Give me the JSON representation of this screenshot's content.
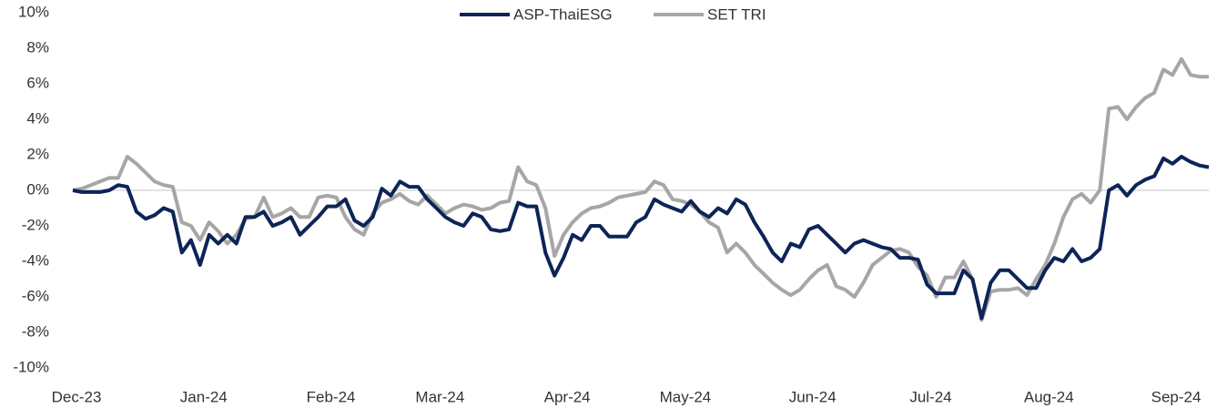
{
  "chart_data": {
    "type": "line",
    "categories": [
      "Dec-23",
      null,
      null,
      null,
      null,
      null,
      null,
      null,
      null,
      null,
      null,
      null,
      null,
      null,
      "Jan-24",
      null,
      null,
      null,
      null,
      null,
      null,
      null,
      null,
      null,
      null,
      null,
      null,
      null,
      "Feb-24",
      null,
      null,
      null,
      null,
      null,
      null,
      null,
      null,
      null,
      null,
      null,
      "Mar-24",
      null,
      null,
      null,
      null,
      null,
      null,
      null,
      null,
      null,
      null,
      null,
      null,
      null,
      "Apr-24",
      null,
      null,
      null,
      null,
      null,
      null,
      null,
      null,
      null,
      null,
      null,
      null,
      "May-24",
      null,
      null,
      null,
      null,
      null,
      null,
      null,
      null,
      null,
      null,
      null,
      null,
      null,
      "Jun-24",
      null,
      null,
      null,
      null,
      null,
      null,
      null,
      null,
      null,
      null,
      null,
      null,
      "Jul-24",
      null,
      null,
      null,
      null,
      null,
      null,
      null,
      null,
      null,
      null,
      null,
      null,
      "Aug-24",
      null,
      null,
      null,
      null,
      null,
      null,
      null,
      null,
      null,
      null,
      null,
      null,
      null,
      "Sep-24",
      null,
      null,
      null,
      null
    ],
    "series": [
      {
        "name": "ASP-ThaiESG",
        "color": "#0d2457",
        "values": [
          0,
          -0.1,
          -0.1,
          -0.1,
          0,
          0.3,
          0.2,
          -1.2,
          -1.6,
          -1.4,
          -1,
          -1.2,
          -3.5,
          -2.8,
          -4.2,
          -2.5,
          -3,
          -2.5,
          -3,
          -1.5,
          -1.5,
          -1.2,
          -2,
          -1.8,
          -1.5,
          -2.5,
          -2,
          -1.5,
          -0.9,
          -0.9,
          -0.5,
          -1.7,
          -2,
          -1.5,
          0.1,
          -0.3,
          0.5,
          0.2,
          0.2,
          -0.5,
          -1,
          -1.5,
          -1.8,
          -2,
          -1.3,
          -1.5,
          -2.2,
          -2.3,
          -2.2,
          -0.7,
          -0.9,
          -0.9,
          -3.5,
          -4.8,
          -3.8,
          -2.5,
          -2.8,
          -2,
          -2,
          -2.6,
          -2.6,
          -2.6,
          -1.8,
          -1.5,
          -0.5,
          -0.8,
          -1,
          -1.2,
          -0.6,
          -1.2,
          -1.5,
          -1,
          -1.3,
          -0.5,
          -0.8,
          -1.8,
          -2.6,
          -3.5,
          -4,
          -3,
          -3.2,
          -2.2,
          -2,
          -2.5,
          -3,
          -3.5,
          -3,
          -2.8,
          -3,
          -3.2,
          -3.3,
          -3.8,
          -3.8,
          -3.9,
          -5.3,
          -5.8,
          -5.8,
          -5.8,
          -4.5,
          -5,
          -7.2,
          -5.2,
          -4.5,
          -4.5,
          -5,
          -5.5,
          -5.5,
          -4.5,
          -3.8,
          -4,
          -3.3,
          -4,
          -3.8,
          -3.3,
          0,
          0.3,
          -0.3,
          0.3,
          0.6,
          0.8,
          1.8,
          1.5,
          1.9,
          1.6,
          1.4,
          1.3
        ]
      },
      {
        "name": "SET TRI",
        "color": "#a6a6a6",
        "values": [
          0,
          0.1,
          0.3,
          0.5,
          0.7,
          0.7,
          1.9,
          1.5,
          1,
          0.5,
          0.3,
          0.2,
          -1.8,
          -2,
          -2.8,
          -1.8,
          -2.3,
          -3,
          -2.5,
          -1.6,
          -1.5,
          -0.4,
          -1.5,
          -1.3,
          -1,
          -1.5,
          -1.5,
          -0.4,
          -0.3,
          -0.4,
          -1.5,
          -2.2,
          -2.5,
          -1.3,
          -0.7,
          -0.5,
          -0.2,
          -0.6,
          -0.8,
          -0.3,
          -0.8,
          -1.3,
          -1,
          -0.8,
          -0.9,
          -1.1,
          -1,
          -0.7,
          -0.6,
          1.3,
          0.5,
          0.3,
          -1,
          -3.7,
          -2.5,
          -1.8,
          -1.3,
          -1,
          -0.9,
          -0.7,
          -0.4,
          -0.3,
          -0.2,
          -0.1,
          0.5,
          0.3,
          -0.5,
          -0.6,
          -0.8,
          -1.2,
          -1.8,
          -2.1,
          -3.5,
          -3,
          -3.5,
          -4.2,
          -4.7,
          -5.2,
          -5.6,
          -5.9,
          -5.6,
          -5,
          -4.5,
          -4.2,
          -5.4,
          -5.6,
          -6,
          -5.2,
          -4.2,
          -3.8,
          -3.4,
          -3.3,
          -3.5,
          -4.3,
          -4.8,
          -6,
          -4.9,
          -4.9,
          -4,
          -5,
          -7.3,
          -5.7,
          -5.6,
          -5.6,
          -5.5,
          -5.9,
          -5,
          -4.2,
          -3,
          -1.5,
          -0.5,
          -0.2,
          -0.7,
          0,
          4.6,
          4.7,
          4,
          4.7,
          5.2,
          5.5,
          6.8,
          6.5,
          7.4,
          6.5,
          6.4,
          6.4
        ]
      }
    ],
    "ylim": [
      -10,
      10
    ],
    "yticks": [
      {
        "value": 10,
        "label": "10%"
      },
      {
        "value": 8,
        "label": "8%"
      },
      {
        "value": 6,
        "label": "6%"
      },
      {
        "value": 4,
        "label": "4%"
      },
      {
        "value": 2,
        "label": "2%"
      },
      {
        "value": 0,
        "label": "0%"
      },
      {
        "value": -2,
        "label": "-2%"
      },
      {
        "value": -4,
        "label": "-4%"
      },
      {
        "value": -6,
        "label": "-6%"
      },
      {
        "value": -8,
        "label": "-8%"
      },
      {
        "value": -10,
        "label": "-10%"
      }
    ],
    "legend": "top",
    "grid": false
  }
}
